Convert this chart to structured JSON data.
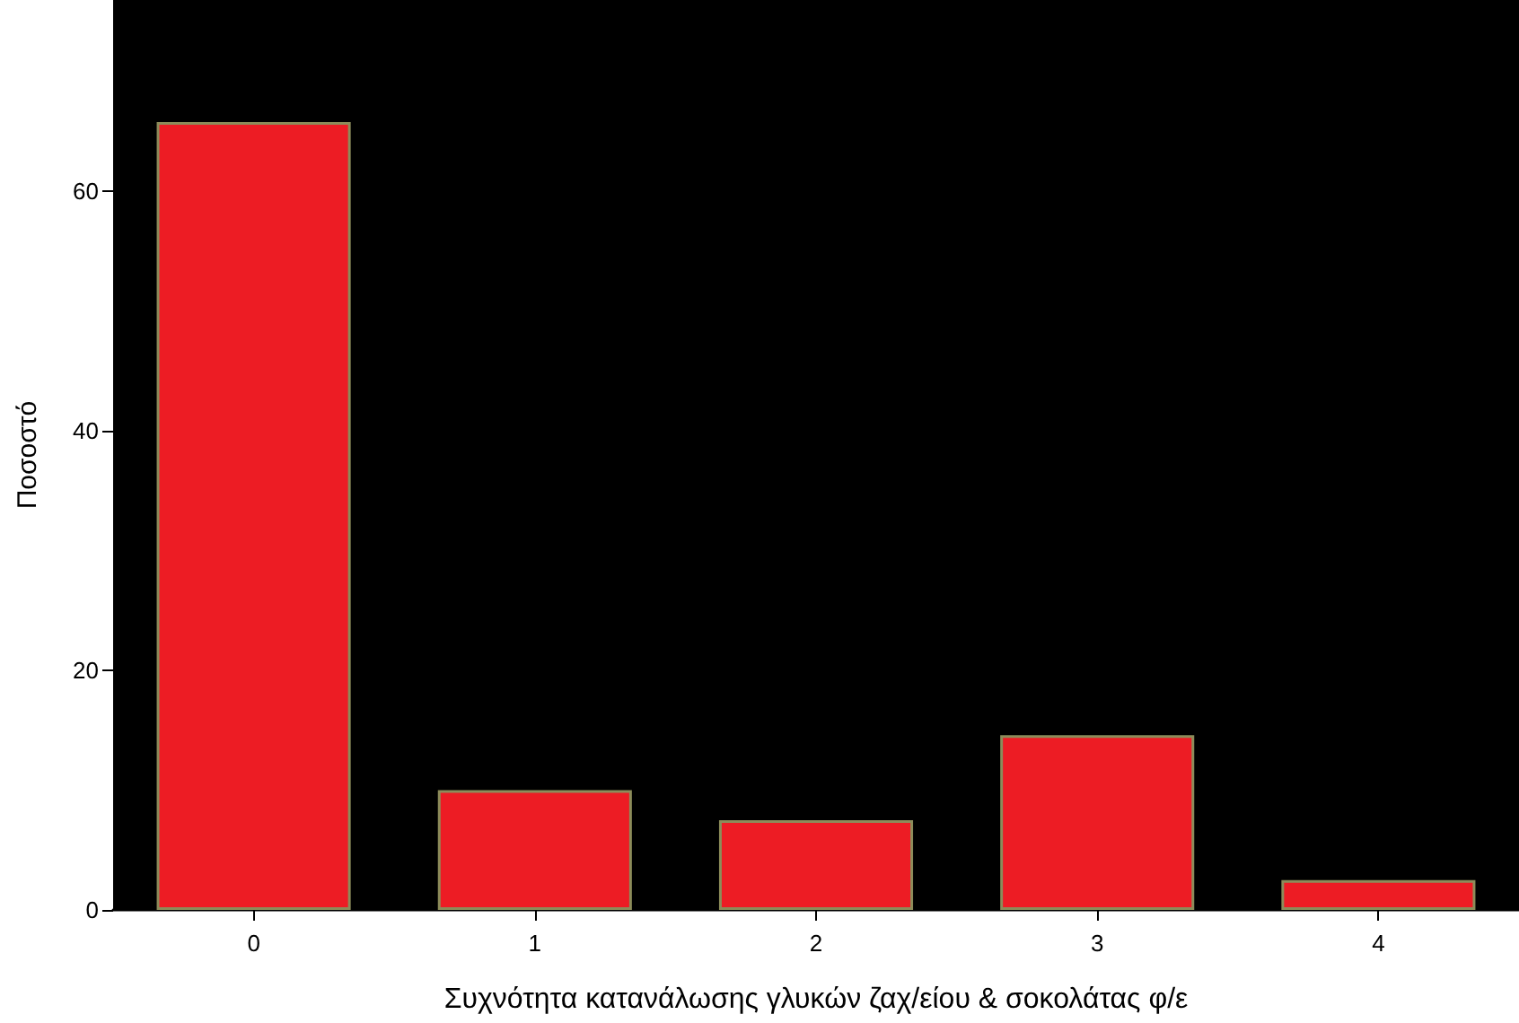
{
  "chart_data": {
    "type": "bar",
    "xlabel": "Συχνότητα κατανάλωσης γλυκών ζαχ/είου & σοκολάτας φ/ε",
    "ylabel": "Ποσοστό",
    "categories": [
      "0",
      "1",
      "2",
      "3",
      "4"
    ],
    "values": [
      65.8,
      10,
      7.5,
      14.6,
      2.5
    ],
    "color": "#ed1c24",
    "ylim": [
      0,
      76
    ],
    "yticks": [
      0,
      20,
      40,
      60
    ],
    "grid": false
  }
}
